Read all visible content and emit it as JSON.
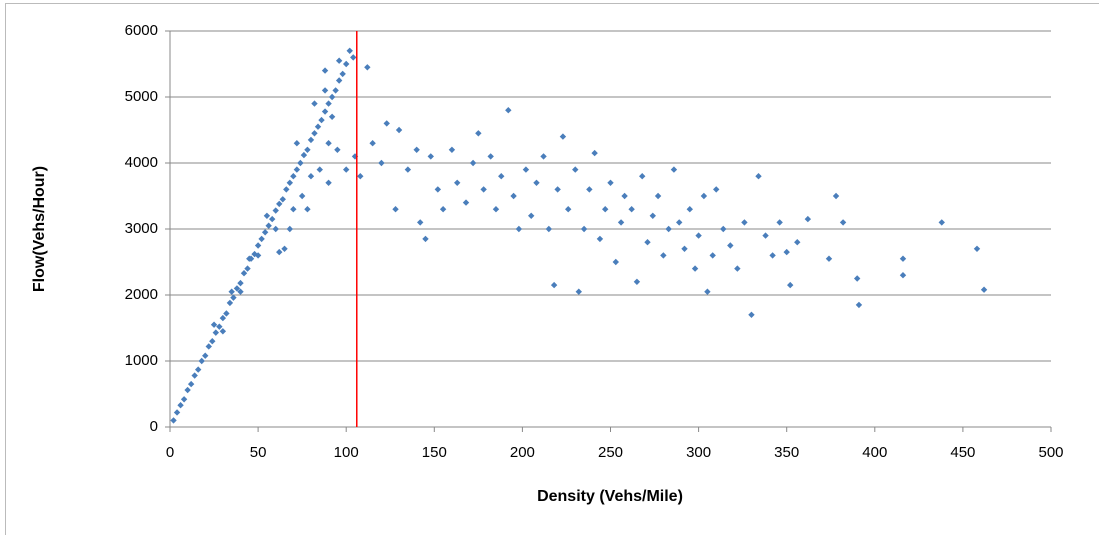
{
  "chart_data": {
    "type": "scatter",
    "x_label": "Density (Vehs/Mile)",
    "y_label": "Flow(Vehs/Hour)",
    "color": "#4a7ebb",
    "reference_x": 106,
    "reference_color": "#ff0000",
    "grid": true,
    "xlim": [
      0,
      500
    ],
    "xticks": [
      0,
      50,
      100,
      150,
      200,
      250,
      300,
      350,
      400,
      450,
      500
    ],
    "ylim": [
      0,
      6000
    ],
    "yticks": [
      0,
      1000,
      2000,
      3000,
      4000,
      5000,
      6000
    ],
    "x": [
      2,
      4,
      6,
      8,
      10,
      12,
      14,
      16,
      18,
      20,
      22,
      24,
      26,
      28,
      30,
      32,
      34,
      36,
      38,
      40,
      42,
      44,
      46,
      48,
      50,
      52,
      54,
      56,
      58,
      60,
      62,
      64,
      66,
      68,
      70,
      72,
      74,
      76,
      78,
      80,
      82,
      84,
      86,
      88,
      90,
      92,
      94,
      96,
      98,
      100,
      102,
      104,
      96,
      88,
      30,
      40,
      50,
      60,
      65,
      70,
      75,
      80,
      85,
      90,
      62,
      68,
      78,
      95,
      100,
      90,
      55,
      45,
      35,
      25,
      72,
      82,
      88,
      92,
      105,
      108,
      112,
      115,
      120,
      123,
      128,
      130,
      135,
      140,
      142,
      145,
      148,
      152,
      155,
      160,
      163,
      168,
      172,
      175,
      178,
      182,
      185,
      188,
      192,
      195,
      198,
      202,
      205,
      208,
      212,
      215,
      218,
      220,
      223,
      226,
      230,
      232,
      235,
      238,
      241,
      244,
      247,
      250,
      253,
      256,
      258,
      262,
      265,
      268,
      271,
      274,
      277,
      280,
      283,
      286,
      289,
      292,
      295,
      298,
      300,
      303,
      305,
      308,
      310,
      314,
      318,
      322,
      326,
      330,
      334,
      338,
      342,
      346,
      350,
      352,
      356,
      362,
      374,
      378,
      382,
      390,
      391,
      416,
      416,
      438,
      458,
      462
    ],
    "values": [
      100,
      220,
      330,
      420,
      560,
      650,
      780,
      870,
      1000,
      1080,
      1220,
      1300,
      1430,
      1520,
      1650,
      1720,
      1880,
      1960,
      2100,
      2180,
      2330,
      2400,
      2550,
      2620,
      2750,
      2850,
      2950,
      3050,
      3150,
      3280,
      3380,
      3450,
      3600,
      3700,
      3800,
      3900,
      4000,
      4120,
      4200,
      4350,
      4450,
      4550,
      4650,
      4780,
      4900,
      5000,
      5100,
      5250,
      5350,
      5500,
      5700,
      5600,
      5550,
      5400,
      1450,
      2050,
      2600,
      3000,
      2700,
      3300,
      3500,
      3800,
      3900,
      3700,
      2650,
      3000,
      3300,
      4200,
      3900,
      4300,
      3200,
      2550,
      2050,
      1550,
      4300,
      4900,
      5100,
      4700,
      4100,
      3800,
      5450,
      4300,
      4000,
      4600,
      3300,
      4500,
      3900,
      4200,
      3100,
      2850,
      4100,
      3600,
      3300,
      4200,
      3700,
      3400,
      4000,
      4450,
      3600,
      4100,
      3300,
      3800,
      4800,
      3500,
      3000,
      3900,
      3200,
      3700,
      4100,
      3000,
      2150,
      3600,
      4400,
      3300,
      3900,
      2050,
      3000,
      3600,
      4150,
      2850,
      3300,
      3700,
      2500,
      3100,
      3500,
      3300,
      2200,
      3800,
      2800,
      3200,
      3500,
      2600,
      3000,
      3900,
      3100,
      2700,
      3300,
      2400,
      2900,
      3500,
      2050,
      2600,
      3600,
      3000,
      2750,
      2400,
      3100,
      1700,
      3800,
      2900,
      2600,
      3100,
      2650,
      2150,
      2800,
      3150,
      2550,
      3500,
      3100,
      2250,
      1850,
      2550,
      2300,
      3100,
      2700,
      2080
    ]
  }
}
